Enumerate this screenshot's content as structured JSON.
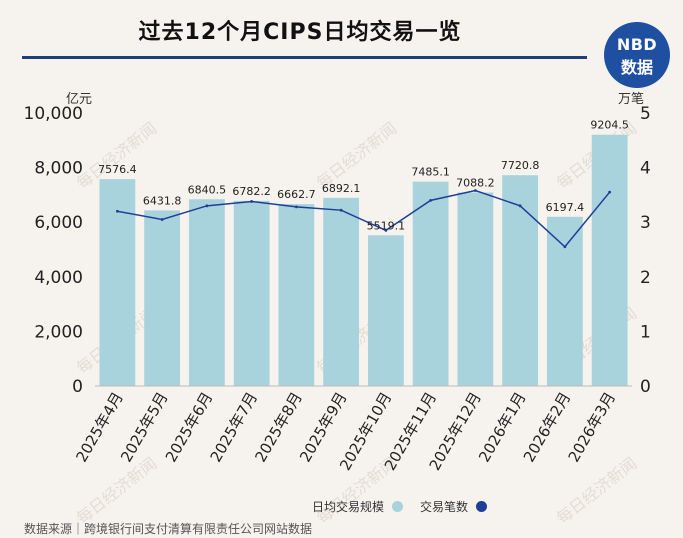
{
  "page": {
    "title": "过去12个月CIPS日均交易一览"
  },
  "logo": {
    "line1": "NBD",
    "line2": "数据"
  },
  "watermark": "每日经济新闻",
  "units": {
    "left": "亿元",
    "right": "万笔"
  },
  "legend": {
    "bar_label": "日均交易规模",
    "line_label": "交易笔数"
  },
  "colors": {
    "bar": "#a8d2dc",
    "line": "#1f3f96",
    "rule": "#1f3f7a"
  },
  "source": "数据来源｜跨境银行间支付清算有限责任公司网站数据",
  "chart_data": {
    "type": "bar",
    "title": "过去12个月CIPS日均交易一览",
    "categories": [
      "2025年4月",
      "2025年5月",
      "2025年6月",
      "2025年7月",
      "2025年8月",
      "2025年9月",
      "2025年10月",
      "2025年11月",
      "2025年12月",
      "2026年1月",
      "2026年2月",
      "2026年3月"
    ],
    "series": [
      {
        "name": "日均交易规模",
        "axis": "left",
        "type": "bar",
        "values": [
          7576.4,
          6431.8,
          6840.5,
          6782.2,
          6662.7,
          6892.1,
          5519.1,
          7485.1,
          7088.2,
          7720.8,
          6197.4,
          9204.5
        ],
        "labels": [
          "7576.4",
          "6431.8",
          "6840.5",
          "6782.2",
          "6662.7",
          "6892.1",
          "5519.1",
          "7485.1",
          "7088.2",
          "7720.8",
          "6197.4",
          "9204.5"
        ]
      },
      {
        "name": "交易笔数",
        "axis": "right",
        "type": "line",
        "values": [
          3.2,
          3.05,
          3.3,
          3.38,
          3.28,
          3.22,
          2.85,
          3.4,
          3.58,
          3.3,
          2.55,
          3.55
        ]
      }
    ],
    "y_left": {
      "label": "亿元",
      "lim": [
        0,
        10000
      ],
      "ticks": [
        0,
        2000,
        4000,
        6000,
        8000,
        10000
      ],
      "tick_labels": [
        "0",
        "2,000",
        "4,000",
        "6,000",
        "8,000",
        "10,000"
      ]
    },
    "y_right": {
      "label": "万笔",
      "lim": [
        0,
        5
      ],
      "ticks": [
        0,
        1,
        2,
        3,
        4,
        5
      ],
      "tick_labels": [
        "0",
        "1",
        "2",
        "3",
        "4",
        "5"
      ]
    },
    "grid": false,
    "legend_position": "bottom-center"
  }
}
